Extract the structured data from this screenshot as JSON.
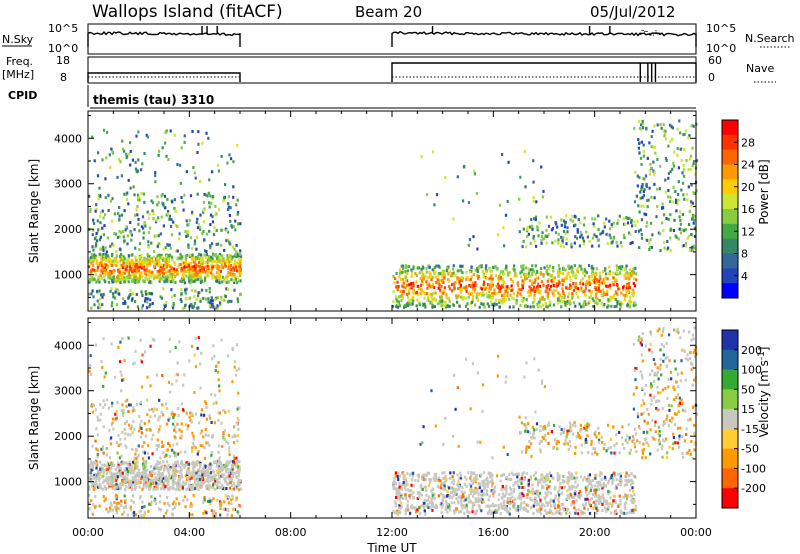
{
  "header": {
    "station": "Wallops Island (fitACF)",
    "beam": "Beam 20",
    "date": "05/Jul/2012"
  },
  "status_panels": {
    "nsky": {
      "label": "N.Sky",
      "ticks": [
        "10^5",
        "10^0"
      ]
    },
    "nsearch": {
      "label": "N.Search",
      "ticks": [
        "10^5",
        "10^0"
      ]
    },
    "freq": {
      "label_line1": "Freq.",
      "label_line2": "[MHz]",
      "ticks": [
        "18",
        "8"
      ]
    },
    "nave": {
      "label": "Nave",
      "ticks": [
        "60",
        "0"
      ]
    },
    "cpid": {
      "label": "CPID",
      "value": "themis (tau) 3310"
    }
  },
  "chart_data": [
    {
      "type": "heatmap",
      "name": "power",
      "ylabel": "Slant Range [km]",
      "xlabel": "",
      "xlim_hours": [
        0,
        24
      ],
      "ylim": [
        200,
        4600
      ],
      "yticks": [
        1000,
        2000,
        3000,
        4000
      ],
      "xticks": [
        "00:00",
        "04:00",
        "08:00",
        "12:00",
        "16:00",
        "20:00",
        "00:00"
      ],
      "colorbar": {
        "label": "Power [dB]",
        "ticks": [
          "28",
          "24",
          "20",
          "16",
          "12",
          "8",
          "4"
        ],
        "colors": [
          "#ff0000",
          "#ff3300",
          "#ff6600",
          "#ff9900",
          "#ffcc00",
          "#cce633",
          "#88cc44",
          "#44aa44",
          "#338866",
          "#336699",
          "#2244bb",
          "#0000ff"
        ]
      },
      "echo_regions_hours_km": [
        {
          "t": [
            0,
            6
          ],
          "r": [
            800,
            1600
          ],
          "level": "high"
        },
        {
          "t": [
            0,
            6
          ],
          "r": [
            1700,
            2800
          ],
          "level": "mid"
        },
        {
          "t": [
            12,
            21.6
          ],
          "r": [
            300,
            1200
          ],
          "level": "high"
        },
        {
          "t": [
            17,
            24
          ],
          "r": [
            1600,
            4400
          ],
          "level": "mid"
        }
      ]
    },
    {
      "type": "heatmap",
      "name": "velocity",
      "ylabel": "Slant Range [km]",
      "xlabel": "Time UT",
      "xlim_hours": [
        0,
        24
      ],
      "ylim": [
        200,
        4600
      ],
      "yticks": [
        1000,
        2000,
        3000,
        4000
      ],
      "xticks": [
        "00:00",
        "04:00",
        "08:00",
        "12:00",
        "16:00",
        "20:00",
        "00:00"
      ],
      "colorbar": {
        "label": "Velocity [m s^-1]",
        "ticks": [
          "200",
          "100",
          "50",
          "15",
          "-15",
          "-50",
          "-100",
          "-200"
        ],
        "colors": [
          "#2233aa",
          "#226699",
          "#33aa33",
          "#88cc44",
          "#c8c8c0",
          "#ffcc33",
          "#ff9900",
          "#ff6600",
          "#ff0000"
        ]
      },
      "echo_regions_hours_km": [
        {
          "t": [
            0,
            6
          ],
          "r": [
            800,
            1600
          ],
          "level": "ground"
        },
        {
          "t": [
            0,
            6
          ],
          "r": [
            1700,
            2800
          ],
          "level": "mixed"
        },
        {
          "t": [
            12,
            21.6
          ],
          "r": [
            300,
            1200
          ],
          "level": "ground"
        },
        {
          "t": [
            17,
            24
          ],
          "r": [
            1600,
            4400
          ],
          "level": "mixed"
        }
      ]
    }
  ]
}
